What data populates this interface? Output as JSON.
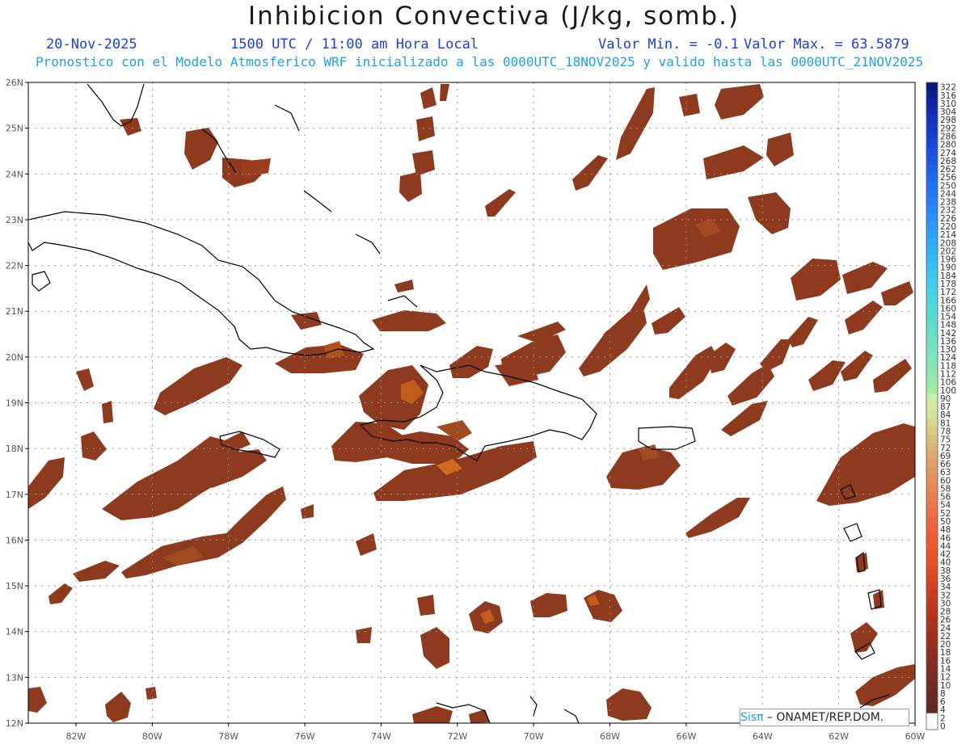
{
  "header": {
    "title": "Inhibicion Convectiva (J/kg, somb.)",
    "date": "20-Nov-2025",
    "time": "1500 UTC / 11:00 am Hora Local",
    "valor_min": "Valor Min. = -0.1",
    "valor_max": "Valor Max. = 63.5879",
    "model_note": "Pronostico con el Modelo Atmosferico WRF inicializado a las 0000UTC_18NOV2025 y valido hasta las  0000UTC_21NOV2025"
  },
  "map": {
    "lat_labels": [
      "26N",
      "25N",
      "24N",
      "23N",
      "22N",
      "21N",
      "20N",
      "19N",
      "18N",
      "17N",
      "16N",
      "15N",
      "14N",
      "13N",
      "12N"
    ],
    "lon_labels": [
      "82W",
      "80W",
      "78W",
      "76W",
      "74W",
      "72W",
      "70W",
      "68W",
      "66W",
      "64W",
      "62W",
      "60W"
    ],
    "field_color": "#8e3a1e",
    "core_color": "#f07820"
  },
  "colorbar": {
    "labels": [
      "322",
      "316",
      "310",
      "304",
      "298",
      "292",
      "286",
      "280",
      "274",
      "268",
      "262",
      "256",
      "250",
      "244",
      "238",
      "232",
      "226",
      "220",
      "214",
      "208",
      "202",
      "196",
      "190",
      "184",
      "178",
      "172",
      "166",
      "160",
      "154",
      "148",
      "142",
      "136",
      "130",
      "124",
      "118",
      "112",
      "106",
      "100",
      "90",
      "87",
      "84",
      "81",
      "78",
      "75",
      "72",
      "69",
      "66",
      "63",
      "60",
      "58",
      "56",
      "54",
      "52",
      "50",
      "48",
      "46",
      "44",
      "42",
      "40",
      "38",
      "36",
      "34",
      "32",
      "30",
      "28",
      "26",
      "24",
      "22",
      "20",
      "18",
      "16",
      "14",
      "12",
      "10",
      "8",
      "6",
      "4",
      "2",
      "0"
    ],
    "colors": [
      "#0a1a7a",
      "#0c2090",
      "#0e26a0",
      "#102cb0",
      "#1232bd",
      "#1438c8",
      "#1640d2",
      "#1848da",
      "#1a50e0",
      "#1c58e6",
      "#1e60ea",
      "#2068ee",
      "#2270f2",
      "#2478f4",
      "#2680f6",
      "#2888f8",
      "#2a90f8",
      "#2c98f8",
      "#2ea0f8",
      "#30a8f8",
      "#32b0f6",
      "#36b8f4",
      "#3ac0f0",
      "#3ec6ec",
      "#42ccea",
      "#48d0e6",
      "#4ed4e2",
      "#54d6dc",
      "#5ad8d6",
      "#62dad0",
      "#6adcca",
      "#72dec4",
      "#7ae0be",
      "#82e2b8",
      "#8ae4b2",
      "#92e6ac",
      "#9ae8a6",
      "#a2eaa0",
      "#c8ecaa",
      "#d0e8a0",
      "#d6e296",
      "#d8d88c",
      "#d8cc82",
      "#d8c07a",
      "#dab474",
      "#dca86e",
      "#dea068",
      "#e09862",
      "#e2905c",
      "#e48856",
      "#e68050",
      "#e8784a",
      "#ea7044",
      "#ec683e",
      "#ee6038",
      "#f05a32",
      "#f0582e",
      "#ec522a",
      "#e84e28",
      "#e04a26",
      "#d84624",
      "#d04222",
      "#c83e20",
      "#c03a1e",
      "#b8361c",
      "#b0341c",
      "#a8321c",
      "#a0301c",
      "#98301e",
      "#902e1e",
      "#882e20",
      "#802c20",
      "#7a2c22",
      "#742a22",
      "#6e2a22",
      "#682824",
      "#622826",
      "#ffffff"
    ]
  },
  "credit": {
    "brand": "Sisπ",
    "text": " – ONAMET/REP.DOM."
  }
}
